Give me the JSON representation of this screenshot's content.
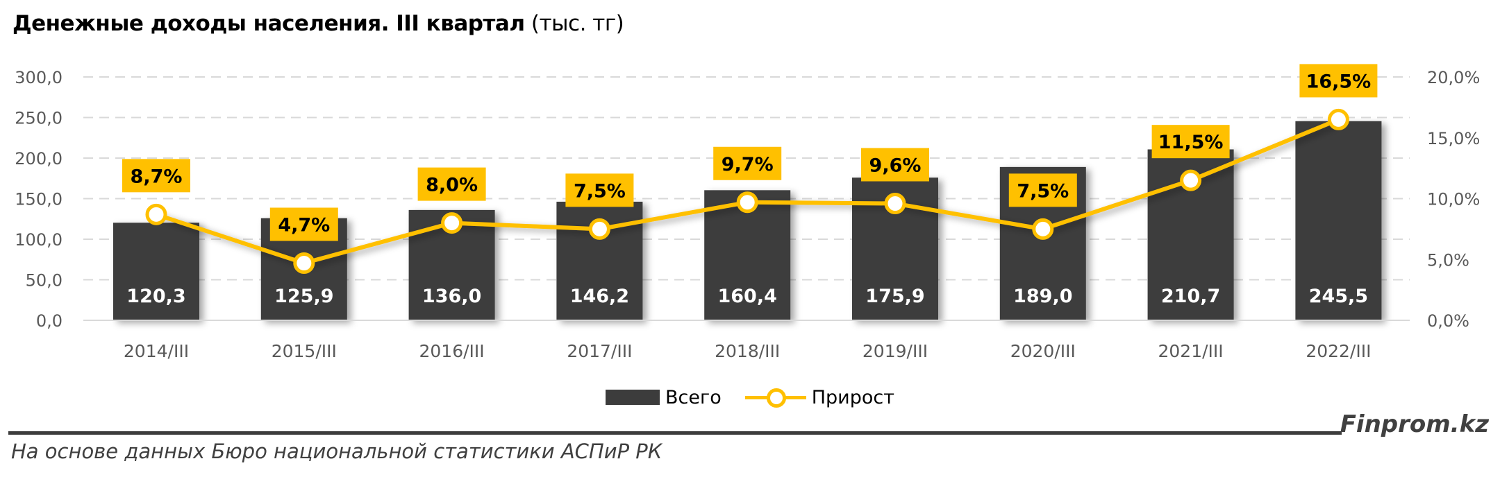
{
  "title": {
    "main": "Денежные доходы населения. III квартал",
    "unit": "(тыс. тг)"
  },
  "colors": {
    "bar": "#3c3c3c",
    "line": "#ffc000",
    "label_box": "#ffc000",
    "grid": "#d9d9d9",
    "axis_text": "#595959"
  },
  "chart_data": {
    "type": "bar+line",
    "title": "Денежные доходы населения. III квартал (тыс. тг)",
    "xlabel": "",
    "ylabel": "",
    "categories": [
      "2014/III",
      "2015/III",
      "2016/III",
      "2017/III",
      "2018/III",
      "2019/III",
      "2020/III",
      "2021/III",
      "2022/III"
    ],
    "series": [
      {
        "name": "Всего",
        "type": "bar",
        "axis": "left",
        "values": [
          120.3,
          125.9,
          136.0,
          146.2,
          160.4,
          175.9,
          189.0,
          210.7,
          245.5
        ],
        "labels": [
          "120,3",
          "125,9",
          "136,0",
          "146,2",
          "160,4",
          "175,9",
          "189,0",
          "210,7",
          "245,5"
        ]
      },
      {
        "name": "Прирост",
        "type": "line",
        "axis": "right",
        "values": [
          8.7,
          4.7,
          8.0,
          7.5,
          9.7,
          9.6,
          7.5,
          11.5,
          16.5
        ],
        "labels": [
          "8,7%",
          "4,7%",
          "8,0%",
          "7,5%",
          "9,7%",
          "9,6%",
          "7,5%",
          "11,5%",
          "16,5%"
        ]
      }
    ],
    "ylim": [
      0,
      300
    ],
    "y2lim": [
      0,
      20
    ],
    "yticks": [
      "0,0",
      "50,0",
      "100,0",
      "150,0",
      "200,0",
      "250,0",
      "300,0"
    ],
    "y2ticks": [
      "0,0%",
      "5,0%",
      "10,0%",
      "15,0%",
      "20,0%"
    ],
    "grid": true,
    "legend_position": "bottom"
  },
  "legend": {
    "items": [
      {
        "label": "Всего"
      },
      {
        "label": "Прирост"
      }
    ]
  },
  "footer": {
    "brand": "Finprom.kz",
    "source": "На основе данных Бюро национальной статистики АСПиР РК"
  }
}
